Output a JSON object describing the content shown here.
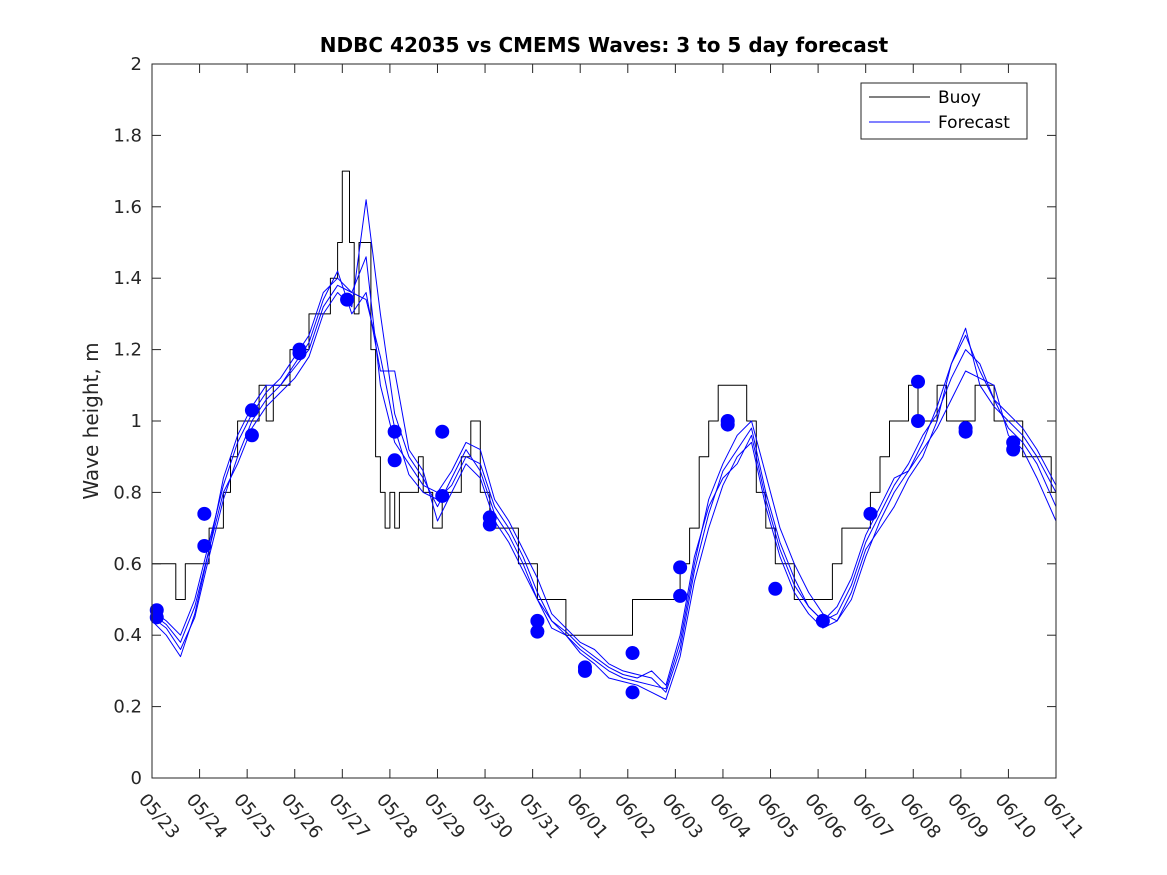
{
  "chart_data": {
    "type": "line",
    "title": "NDBC 42035 vs CMEMS Waves: 3 to 5 day forecast",
    "xlabel": "",
    "ylabel": "Wave height, m",
    "xlim": [
      0,
      19
    ],
    "ylim": [
      0,
      2
    ],
    "x_ticks": [
      "05/23",
      "05/24",
      "05/25",
      "05/26",
      "05/27",
      "05/28",
      "05/29",
      "05/30",
      "05/31",
      "06/01",
      "06/02",
      "06/03",
      "06/04",
      "06/05",
      "06/06",
      "06/07",
      "06/08",
      "06/09",
      "06/10",
      "06/11"
    ],
    "y_ticks": [
      "0",
      "0.2",
      "0.4",
      "0.6",
      "0.8",
      "1",
      "1.2",
      "1.4",
      "1.6",
      "1.8",
      "2"
    ],
    "grid": false,
    "legend_position": "top-right",
    "colors": {
      "buoy": "#000000",
      "forecast": "#0000ff"
    },
    "series": [
      {
        "name": "Buoy",
        "x_unit": "days since 05/23",
        "x": [
          0,
          0.3,
          0.5,
          0.7,
          0.9,
          1.0,
          1.2,
          1.35,
          1.5,
          1.65,
          1.8,
          1.95,
          2.1,
          2.25,
          2.4,
          2.55,
          2.7,
          2.9,
          3.1,
          3.3,
          3.45,
          3.6,
          3.75,
          3.9,
          4.0,
          4.15,
          4.25,
          4.35,
          4.5,
          4.6,
          4.7,
          4.8,
          4.9,
          5.0,
          5.1,
          5.2,
          5.35,
          5.5,
          5.6,
          5.7,
          5.9,
          6.1,
          6.3,
          6.5,
          6.7,
          6.9,
          7.1,
          7.3,
          7.5,
          7.7,
          7.9,
          8.1,
          8.3,
          8.5,
          8.7,
          8.9,
          9.1,
          9.3,
          9.5,
          9.7,
          9.9,
          10.1,
          10.3,
          10.5,
          10.7,
          10.9,
          11.1,
          11.3,
          11.5,
          11.7,
          11.9,
          12.1,
          12.3,
          12.5,
          12.7,
          12.9,
          13.1,
          13.3,
          13.5,
          13.7,
          13.9,
          14.1,
          14.3,
          14.5,
          14.7,
          14.9,
          15.1,
          15.3,
          15.5,
          15.7,
          15.9,
          16.1,
          16.3,
          16.5,
          16.7,
          16.9,
          17.1,
          17.3,
          17.5,
          17.7,
          17.9,
          18.1,
          18.3,
          18.5,
          18.7,
          18.9,
          19.0
        ],
        "values": [
          0.6,
          0.6,
          0.5,
          0.6,
          0.6,
          0.6,
          0.7,
          0.7,
          0.8,
          0.9,
          1.0,
          1.0,
          1.0,
          1.1,
          1.0,
          1.1,
          1.1,
          1.2,
          1.2,
          1.3,
          1.3,
          1.3,
          1.4,
          1.5,
          1.7,
          1.5,
          1.3,
          1.5,
          1.5,
          1.2,
          0.9,
          0.8,
          0.7,
          0.8,
          0.7,
          0.8,
          0.8,
          0.8,
          0.9,
          0.8,
          0.7,
          0.8,
          0.8,
          0.9,
          1.0,
          0.8,
          0.7,
          0.7,
          0.7,
          0.6,
          0.6,
          0.5,
          0.5,
          0.5,
          0.4,
          0.4,
          0.4,
          0.4,
          0.4,
          0.4,
          0.4,
          0.5,
          0.5,
          0.5,
          0.5,
          0.5,
          0.6,
          0.7,
          0.9,
          1.0,
          1.1,
          1.1,
          1.1,
          1.0,
          0.8,
          0.7,
          0.6,
          0.6,
          0.5,
          0.5,
          0.5,
          0.5,
          0.6,
          0.7,
          0.7,
          0.7,
          0.8,
          0.9,
          1.0,
          1.0,
          1.1,
          1.0,
          1.0,
          1.1,
          1.0,
          1.0,
          1.0,
          1.1,
          1.1,
          1.0,
          1.0,
          1.0,
          0.9,
          0.9,
          0.9,
          0.8,
          0.8
        ]
      },
      {
        "name": "Forecast",
        "x": [
          0,
          0.3,
          0.6,
          0.9,
          1.2,
          1.5,
          1.8,
          2.1,
          2.4,
          2.7,
          3.0,
          3.3,
          3.6,
          3.9,
          4.2,
          4.5,
          4.8,
          5.1,
          5.4,
          5.7,
          6.0,
          6.3,
          6.6,
          6.9,
          7.2,
          7.5,
          7.8,
          8.1,
          8.4,
          8.7,
          9.0,
          9.3,
          9.6,
          9.9,
          10.2,
          10.5,
          10.8,
          11.1,
          11.4,
          11.7,
          12.0,
          12.3,
          12.6,
          12.9,
          13.2,
          13.5,
          13.8,
          14.1,
          14.4,
          14.7,
          15.0,
          15.3,
          15.6,
          15.9,
          16.2,
          16.5,
          16.8,
          17.1,
          17.4,
          17.7,
          18.0,
          18.3,
          18.6,
          19.0
        ],
        "values": [
          0.45,
          0.42,
          0.36,
          0.45,
          0.62,
          0.78,
          0.9,
          1.0,
          1.06,
          1.1,
          1.15,
          1.2,
          1.32,
          1.38,
          1.36,
          1.34,
          1.18,
          0.98,
          0.85,
          0.8,
          0.78,
          0.82,
          0.9,
          0.88,
          0.76,
          0.7,
          0.62,
          0.52,
          0.44,
          0.4,
          0.36,
          0.33,
          0.3,
          0.28,
          0.27,
          0.26,
          0.25,
          0.38,
          0.6,
          0.78,
          0.88,
          0.96,
          1.0,
          0.85,
          0.7,
          0.6,
          0.52,
          0.46,
          0.44,
          0.5,
          0.62,
          0.72,
          0.8,
          0.86,
          0.92,
          0.98,
          1.06,
          1.14,
          1.12,
          1.1,
          0.96,
          0.92,
          0.84,
          0.72
        ]
      },
      {
        "name": "",
        "x": [
          0,
          0.3,
          0.6,
          0.9,
          1.2,
          1.5,
          1.8,
          2.1,
          2.4,
          2.7,
          3.0,
          3.3,
          3.6,
          3.9,
          4.2,
          4.5,
          4.8,
          5.1,
          5.4,
          5.7,
          6.0,
          6.3,
          6.6,
          6.9,
          7.2,
          7.5,
          7.8,
          8.1,
          8.4,
          8.7,
          9.0,
          9.3,
          9.6,
          9.9,
          10.2,
          10.5,
          10.8,
          11.1,
          11.4,
          11.7,
          12.0,
          12.3,
          12.6,
          12.9,
          13.2,
          13.5,
          13.8,
          14.1,
          14.4,
          14.7,
          15.0,
          15.3,
          15.6,
          15.9,
          16.2,
          16.5,
          16.8,
          17.1,
          17.4,
          17.7,
          18.0,
          18.3,
          18.6,
          19.0
        ],
        "values": [
          0.47,
          0.44,
          0.4,
          0.5,
          0.66,
          0.82,
          0.94,
          1.02,
          1.08,
          1.12,
          1.18,
          1.24,
          1.36,
          1.4,
          1.36,
          1.46,
          1.1,
          0.94,
          0.88,
          0.82,
          0.8,
          0.86,
          0.94,
          0.92,
          0.78,
          0.72,
          0.64,
          0.56,
          0.46,
          0.42,
          0.38,
          0.36,
          0.32,
          0.3,
          0.29,
          0.28,
          0.24,
          0.36,
          0.58,
          0.74,
          0.86,
          0.92,
          0.98,
          0.8,
          0.66,
          0.56,
          0.48,
          0.44,
          0.46,
          0.54,
          0.66,
          0.74,
          0.82,
          0.88,
          0.96,
          1.02,
          1.12,
          1.2,
          1.16,
          1.06,
          0.98,
          0.94,
          0.88,
          0.76
        ]
      },
      {
        "name": "",
        "x": [
          0,
          0.3,
          0.6,
          0.9,
          1.2,
          1.5,
          1.8,
          2.1,
          2.4,
          2.7,
          3.0,
          3.3,
          3.6,
          3.9,
          4.2,
          4.5,
          4.8,
          5.1,
          5.4,
          5.7,
          6.0,
          6.3,
          6.6,
          6.9,
          7.2,
          7.5,
          7.8,
          8.1,
          8.4,
          8.7,
          9.0,
          9.3,
          9.6,
          9.9,
          10.2,
          10.5,
          10.8,
          11.1,
          11.4,
          11.7,
          12.0,
          12.3,
          12.6,
          12.9,
          13.2,
          13.5,
          13.8,
          14.1,
          14.4,
          14.7,
          15.0,
          15.3,
          15.6,
          15.9,
          16.2,
          16.5,
          16.8,
          17.1,
          17.4,
          17.7,
          18.0,
          18.3,
          18.6,
          19.0
        ],
        "values": [
          0.44,
          0.4,
          0.34,
          0.46,
          0.64,
          0.8,
          0.88,
          0.98,
          1.04,
          1.08,
          1.12,
          1.18,
          1.3,
          1.36,
          1.32,
          1.62,
          1.3,
          1.02,
          0.9,
          0.84,
          0.76,
          0.84,
          0.92,
          0.86,
          0.74,
          0.68,
          0.6,
          0.5,
          0.42,
          0.4,
          0.35,
          0.32,
          0.28,
          0.27,
          0.26,
          0.24,
          0.22,
          0.34,
          0.55,
          0.7,
          0.82,
          0.9,
          0.94,
          0.76,
          0.62,
          0.52,
          0.46,
          0.42,
          0.44,
          0.52,
          0.64,
          0.7,
          0.76,
          0.84,
          0.9,
          1.0,
          1.16,
          1.26,
          1.1,
          1.04,
          1.0,
          0.96,
          0.9,
          0.8
        ]
      },
      {
        "name": "",
        "x": [
          0,
          0.3,
          0.6,
          0.9,
          1.2,
          1.5,
          1.8,
          2.1,
          2.4,
          2.7,
          3.0,
          3.3,
          3.6,
          3.9,
          4.2,
          4.5,
          4.8,
          5.1,
          5.4,
          5.7,
          6.0,
          6.3,
          6.6,
          6.9,
          7.2,
          7.5,
          7.8,
          8.1,
          8.4,
          8.7,
          9.0,
          9.3,
          9.6,
          9.9,
          10.2,
          10.5,
          10.8,
          11.1,
          11.4,
          11.7,
          12.0,
          12.3,
          12.6,
          12.9,
          13.2,
          13.5,
          13.8,
          14.1,
          14.4,
          14.7,
          15.0,
          15.3,
          15.6,
          15.9,
          16.2,
          16.5,
          16.8,
          17.1,
          17.4,
          17.7,
          18.0,
          18.3,
          18.6,
          19.0
        ],
        "values": [
          0.46,
          0.43,
          0.38,
          0.48,
          0.64,
          0.84,
          0.96,
          1.04,
          1.1,
          1.1,
          1.16,
          1.22,
          1.34,
          1.42,
          1.3,
          1.36,
          1.14,
          1.14,
          0.92,
          0.86,
          0.72,
          0.8,
          0.88,
          0.84,
          0.72,
          0.66,
          0.58,
          0.5,
          0.44,
          0.41,
          0.37,
          0.34,
          0.31,
          0.29,
          0.28,
          0.3,
          0.26,
          0.4,
          0.62,
          0.76,
          0.84,
          0.88,
          0.96,
          0.78,
          0.64,
          0.54,
          0.48,
          0.44,
          0.48,
          0.56,
          0.68,
          0.76,
          0.84,
          0.86,
          0.94,
          1.04,
          1.16,
          1.24,
          1.14,
          1.06,
          1.02,
          0.98,
          0.92,
          0.82
        ]
      }
    ],
    "forecast_markers": {
      "name": "",
      "x": [
        0.1,
        0.1,
        1.1,
        1.1,
        2.1,
        2.1,
        3.1,
        3.1,
        4.1,
        5.1,
        5.1,
        6.1,
        6.1,
        7.1,
        7.1,
        8.1,
        8.1,
        9.1,
        9.1,
        10.1,
        10.1,
        11.1,
        11.1,
        12.1,
        12.1,
        13.1,
        14.1,
        15.1,
        16.1,
        16.1,
        17.1,
        17.1,
        18.1,
        18.1
      ],
      "values": [
        0.47,
        0.45,
        0.74,
        0.65,
        1.03,
        0.96,
        1.2,
        1.19,
        1.34,
        0.97,
        0.89,
        0.97,
        0.79,
        0.73,
        0.71,
        0.44,
        0.41,
        0.31,
        0.3,
        0.35,
        0.24,
        0.59,
        0.51,
        1.0,
        0.99,
        0.53,
        0.44,
        0.74,
        1.11,
        1.0,
        0.98,
        0.97,
        0.94,
        0.92
      ]
    },
    "legend": [
      "Buoy",
      "Forecast"
    ]
  }
}
